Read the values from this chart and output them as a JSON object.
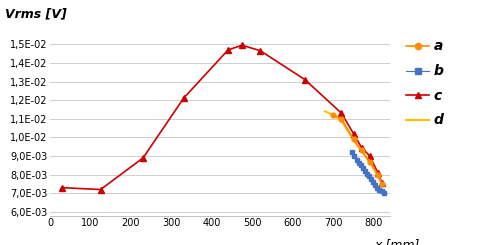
{
  "title_y": "Vrms [V]",
  "xlabel": "x [mm]",
  "xlim": [
    0,
    840
  ],
  "ylim": [
    0.0058,
    0.0158
  ],
  "yticks": [
    0.006,
    0.007,
    0.008,
    0.009,
    0.01,
    0.011,
    0.012,
    0.013,
    0.014,
    0.015
  ],
  "xticks": [
    0,
    100,
    200,
    300,
    400,
    500,
    600,
    700,
    800
  ],
  "series_c": {
    "x": [
      30,
      125,
      230,
      330,
      440,
      475,
      520,
      630,
      720,
      750,
      770,
      790,
      810,
      820
    ],
    "y": [
      0.0073,
      0.0072,
      0.0089,
      0.0121,
      0.0147,
      0.01495,
      0.01465,
      0.0131,
      0.0113,
      0.0102,
      0.00945,
      0.009,
      0.0081,
      0.00755
    ],
    "color": "#cc0000",
    "marker": "^",
    "markersize": 4,
    "linewidth": 1.2,
    "label": "c"
  },
  "series_a": {
    "x": [
      700,
      720,
      750,
      770,
      790,
      810,
      820
    ],
    "y": [
      0.0112,
      0.011,
      0.0099,
      0.0093,
      0.0087,
      0.008,
      0.0075
    ],
    "color": "#ff8c00",
    "marker": "o",
    "markersize": 3.5,
    "linewidth": 1.2,
    "label": "a"
  },
  "series_b": {
    "x": [
      745,
      752,
      758,
      764,
      769,
      774,
      779,
      784,
      789,
      794,
      799,
      804,
      809,
      814,
      819,
      824
    ],
    "y": [
      0.0092,
      0.009,
      0.0088,
      0.00865,
      0.0085,
      0.00835,
      0.0082,
      0.00805,
      0.0079,
      0.00775,
      0.0076,
      0.00745,
      0.0073,
      0.0072,
      0.0071,
      0.007
    ],
    "color": "#4472c4",
    "marker": "s",
    "markersize": 3.5,
    "linewidth": 0.8,
    "label": "b"
  },
  "series_d": {
    "x": [
      680,
      700,
      720,
      750,
      770,
      790,
      810,
      820
    ],
    "y": [
      0.0114,
      0.0112,
      0.0109,
      0.00985,
      0.00925,
      0.00865,
      0.00795,
      0.0075
    ],
    "color": "#ffc000",
    "marker": "None",
    "markersize": 0,
    "linewidth": 1.5,
    "label": "d"
  },
  "background_color": "#ffffff",
  "grid_color": "#c8c8c8"
}
